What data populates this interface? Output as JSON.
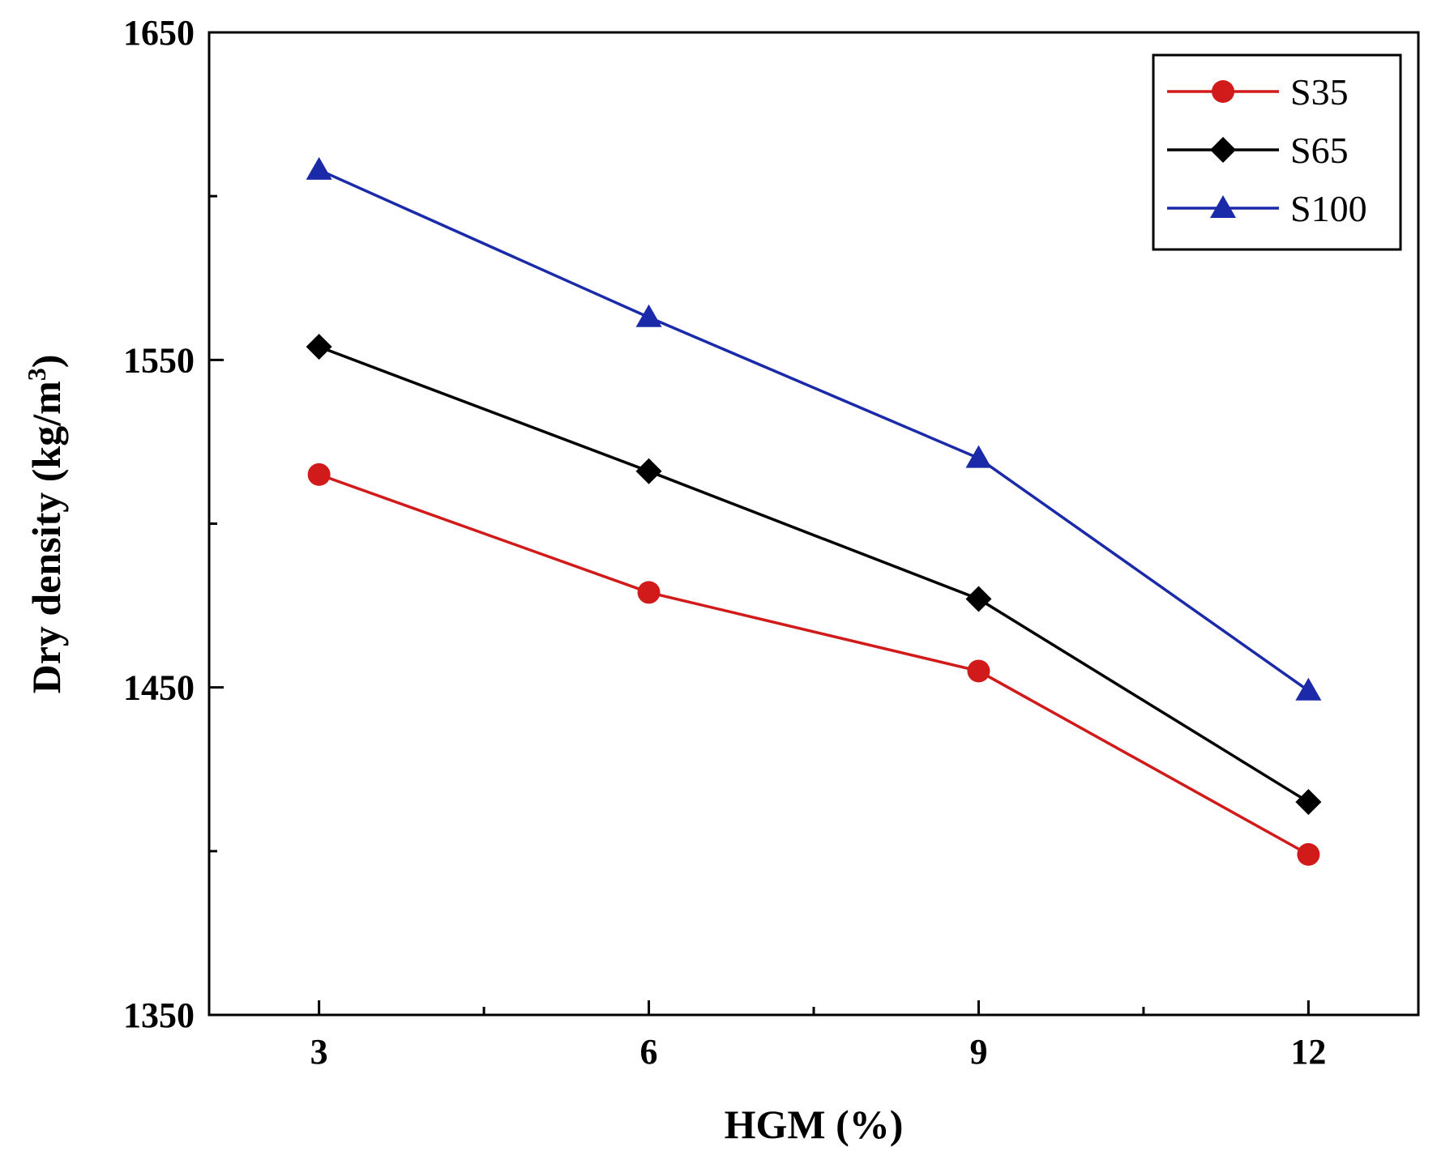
{
  "chart_data": {
    "type": "line",
    "title": "",
    "xlabel": "HGM (%)",
    "ylabel_prefix": "Dry density (kg/m",
    "ylabel_sup": "3",
    "ylabel_suffix": ")",
    "x": [
      3,
      6,
      9,
      12
    ],
    "x_tick_labels": [
      "3",
      "6",
      "9",
      "12"
    ],
    "xlim": [
      2,
      13
    ],
    "ylim": [
      1350,
      1650
    ],
    "y_major_ticks": [
      1350,
      1450,
      1550,
      1650
    ],
    "y_tick_labels": [
      "1350",
      "1450",
      "1550",
      "1650"
    ],
    "y_minor_ticks": [
      1400,
      1500,
      1600
    ],
    "x_minor_ticks": [
      4.5,
      7.5,
      10.5
    ],
    "legend_position": "top-right",
    "grid": false,
    "series": [
      {
        "name": "S35",
        "marker": "circle",
        "color": "#d11a1a",
        "values": [
          1515,
          1479,
          1455,
          1399
        ]
      },
      {
        "name": "S65",
        "marker": "diamond",
        "color": "#000000",
        "values": [
          1554,
          1516,
          1477,
          1415
        ]
      },
      {
        "name": "S100",
        "marker": "triangle",
        "color": "#1a2aa8",
        "values": [
          1608,
          1563,
          1520,
          1449
        ]
      }
    ]
  }
}
